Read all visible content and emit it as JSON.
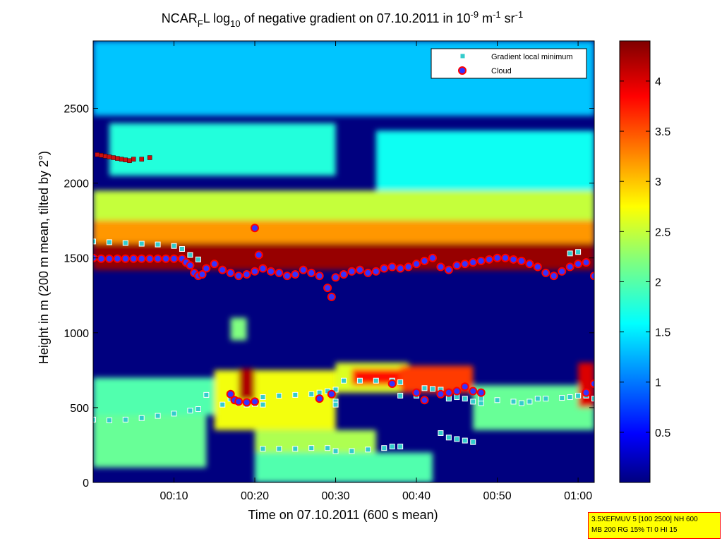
{
  "chart_data": {
    "type": "heatmap",
    "title": "NCAR",
    "title_sub_f": "F",
    "title_mid": "L log",
    "title_sub_10": "10",
    "title_rest": " of negative gradient on 07.10.2011 in 10",
    "title_exp1": "-9",
    "title_unit1": " m",
    "title_exp2": "-1",
    "title_unit2": " sr",
    "title_exp3": "-1",
    "xlabel": "Time on 07.10.2011 (600 s mean)",
    "ylabel": "Height in m (200 m mean, tilted by 2°)",
    "xlim": [
      0,
      62
    ],
    "ylim": [
      0,
      2950
    ],
    "x_ticks": [
      {
        "value": 10,
        "label": "00:10"
      },
      {
        "value": 20,
        "label": "00:20"
      },
      {
        "value": 30,
        "label": "00:30"
      },
      {
        "value": 40,
        "label": "00:40"
      },
      {
        "value": 50,
        "label": "00:50"
      },
      {
        "value": 60,
        "label": "01:00"
      }
    ],
    "y_ticks": [
      {
        "value": 0,
        "label": "0"
      },
      {
        "value": 500,
        "label": "500"
      },
      {
        "value": 1000,
        "label": "1000"
      },
      {
        "value": 1500,
        "label": "1500"
      },
      {
        "value": 2000,
        "label": "2000"
      },
      {
        "value": 2500,
        "label": "2500"
      }
    ],
    "colorbar": {
      "range": [
        0,
        4.4
      ],
      "colormap": "jet",
      "ticks": [
        {
          "value": 0.5,
          "label": "0.5"
        },
        {
          "value": 1,
          "label": "1"
        },
        {
          "value": 1.5,
          "label": "1.5"
        },
        {
          "value": 2,
          "label": "2"
        },
        {
          "value": 2.5,
          "label": "2.5"
        },
        {
          "value": 3,
          "label": "3"
        },
        {
          "value": 3.5,
          "label": "3.5"
        },
        {
          "value": 4,
          "label": "4"
        }
      ]
    },
    "heatmap_regions": [
      {
        "x": [
          0,
          62
        ],
        "y": [
          2450,
          2950
        ],
        "value": 1.4
      },
      {
        "x": [
          2,
          30
        ],
        "y": [
          2050,
          2400
        ],
        "value": 1.8
      },
      {
        "x": [
          35,
          62
        ],
        "y": [
          1950,
          2350
        ],
        "value": 1.7
      },
      {
        "x": [
          0,
          62
        ],
        "y": [
          1750,
          1950
        ],
        "value": 2.5
      },
      {
        "x": [
          0,
          62
        ],
        "y": [
          1600,
          1750
        ],
        "value": 3.2
      },
      {
        "x": [
          0,
          62
        ],
        "y": [
          1420,
          1600
        ],
        "value": 4.3
      },
      {
        "x": [
          0,
          15
        ],
        "y": [
          450,
          700
        ],
        "value": 2.0
      },
      {
        "x": [
          15,
          30
        ],
        "y": [
          350,
          750
        ],
        "value": 2.7
      },
      {
        "x": [
          18,
          20
        ],
        "y": [
          550,
          760
        ],
        "value": 4.2
      },
      {
        "x": [
          30,
          39
        ],
        "y": [
          600,
          800
        ],
        "value": 2.6
      },
      {
        "x": [
          32,
          38
        ],
        "y": [
          650,
          760
        ],
        "value": 3.8
      },
      {
        "x": [
          38,
          47
        ],
        "y": [
          600,
          780
        ],
        "value": 3.6
      },
      {
        "x": [
          47,
          62
        ],
        "y": [
          350,
          650
        ],
        "value": 2.1
      },
      {
        "x": [
          60,
          62
        ],
        "y": [
          500,
          800
        ],
        "value": 4.0
      },
      {
        "x": [
          0,
          14
        ],
        "y": [
          100,
          450
        ],
        "value": 2.1
      },
      {
        "x": [
          20,
          42
        ],
        "y": [
          0,
          200
        ],
        "value": 2.0
      },
      {
        "x": [
          20,
          35
        ],
        "y": [
          200,
          350
        ],
        "value": 2.4
      },
      {
        "x": [
          17,
          19
        ],
        "y": [
          950,
          1100
        ],
        "value": 2.2
      }
    ],
    "series": [
      {
        "name": "Gradient local minimum",
        "marker": "square",
        "points": [
          [
            0,
            1610
          ],
          [
            2,
            1605
          ],
          [
            4,
            1600
          ],
          [
            6,
            1595
          ],
          [
            8,
            1590
          ],
          [
            10,
            1580
          ],
          [
            11,
            1560
          ],
          [
            12,
            1520
          ],
          [
            13,
            1490
          ],
          [
            0,
            420
          ],
          [
            2,
            415
          ],
          [
            4,
            420
          ],
          [
            6,
            430
          ],
          [
            8,
            445
          ],
          [
            10,
            460
          ],
          [
            12,
            480
          ],
          [
            13,
            490
          ],
          [
            14,
            585
          ],
          [
            16,
            520
          ],
          [
            17,
            560
          ],
          [
            18,
            530
          ],
          [
            19,
            520
          ],
          [
            20,
            525
          ],
          [
            21,
            520
          ],
          [
            21,
            570
          ],
          [
            23,
            580
          ],
          [
            25,
            585
          ],
          [
            27,
            590
          ],
          [
            28,
            600
          ],
          [
            29,
            610
          ],
          [
            30,
            620
          ],
          [
            30,
            540
          ],
          [
            30,
            520
          ],
          [
            31,
            680
          ],
          [
            33,
            680
          ],
          [
            35,
            680
          ],
          [
            37,
            680
          ],
          [
            38,
            670
          ],
          [
            21,
            225
          ],
          [
            23,
            225
          ],
          [
            25,
            225
          ],
          [
            27,
            230
          ],
          [
            29,
            230
          ],
          [
            30,
            210
          ],
          [
            32,
            210
          ],
          [
            34,
            220
          ],
          [
            36,
            230
          ],
          [
            37,
            240
          ],
          [
            38,
            240
          ],
          [
            38,
            580
          ],
          [
            40,
            580
          ],
          [
            41,
            630
          ],
          [
            42,
            625
          ],
          [
            43,
            620
          ],
          [
            44,
            560
          ],
          [
            45,
            570
          ],
          [
            46,
            560
          ],
          [
            47,
            540
          ],
          [
            48,
            530
          ],
          [
            43,
            330
          ],
          [
            44,
            300
          ],
          [
            45,
            290
          ],
          [
            46,
            280
          ],
          [
            47,
            270
          ],
          [
            48,
            560
          ],
          [
            50,
            550
          ],
          [
            52,
            540
          ],
          [
            53,
            530
          ],
          [
            54,
            540
          ],
          [
            55,
            560
          ],
          [
            56,
            560
          ],
          [
            58,
            565
          ],
          [
            59,
            570
          ],
          [
            60,
            580
          ],
          [
            61,
            580
          ],
          [
            62,
            560
          ],
          [
            59,
            1530
          ],
          [
            60,
            1540
          ]
        ]
      },
      {
        "name": "Cloud",
        "marker": "circle",
        "points": [
          [
            0,
            1500
          ],
          [
            1,
            1495
          ],
          [
            2,
            1495
          ],
          [
            3,
            1495
          ],
          [
            4,
            1495
          ],
          [
            5,
            1495
          ],
          [
            6,
            1495
          ],
          [
            7,
            1495
          ],
          [
            8,
            1495
          ],
          [
            9,
            1495
          ],
          [
            10,
            1495
          ],
          [
            11,
            1495
          ],
          [
            11.5,
            1470
          ],
          [
            12,
            1450
          ],
          [
            12.5,
            1400
          ],
          [
            13,
            1380
          ],
          [
            13.5,
            1390
          ],
          [
            14,
            1430
          ],
          [
            15,
            1460
          ],
          [
            16,
            1420
          ],
          [
            17,
            1400
          ],
          [
            18,
            1380
          ],
          [
            19,
            1390
          ],
          [
            20,
            1410
          ],
          [
            20,
            1700
          ],
          [
            20.5,
            1520
          ],
          [
            21,
            1430
          ],
          [
            22,
            1410
          ],
          [
            23,
            1400
          ],
          [
            24,
            1380
          ],
          [
            25,
            1390
          ],
          [
            26,
            1420
          ],
          [
            27,
            1400
          ],
          [
            28,
            1380
          ],
          [
            29,
            1300
          ],
          [
            29.5,
            1240
          ],
          [
            30,
            1370
          ],
          [
            31,
            1390
          ],
          [
            32,
            1410
          ],
          [
            33,
            1420
          ],
          [
            34,
            1400
          ],
          [
            35,
            1410
          ],
          [
            36,
            1430
          ],
          [
            37,
            1440
          ],
          [
            38,
            1430
          ],
          [
            39,
            1440
          ],
          [
            40,
            1460
          ],
          [
            41,
            1480
          ],
          [
            42,
            1500
          ],
          [
            43,
            1440
          ],
          [
            44,
            1420
          ],
          [
            45,
            1450
          ],
          [
            46,
            1460
          ],
          [
            47,
            1470
          ],
          [
            48,
            1480
          ],
          [
            49,
            1490
          ],
          [
            50,
            1500
          ],
          [
            51,
            1500
          ],
          [
            52,
            1490
          ],
          [
            53,
            1480
          ],
          [
            54,
            1460
          ],
          [
            55,
            1440
          ],
          [
            56,
            1400
          ],
          [
            57,
            1380
          ],
          [
            58,
            1410
          ],
          [
            59,
            1440
          ],
          [
            60,
            1460
          ],
          [
            61,
            1470
          ],
          [
            62,
            1380
          ],
          [
            17,
            590
          ],
          [
            17.5,
            550
          ],
          [
            18,
            540
          ],
          [
            19,
            535
          ],
          [
            20,
            540
          ],
          [
            28,
            560
          ],
          [
            29.5,
            590
          ],
          [
            37,
            660
          ],
          [
            40,
            600
          ],
          [
            41,
            550
          ],
          [
            43,
            590
          ],
          [
            44,
            600
          ],
          [
            45,
            610
          ],
          [
            46,
            640
          ],
          [
            47,
            610
          ],
          [
            48,
            600
          ],
          [
            61,
            600
          ],
          [
            62,
            660
          ]
        ]
      }
    ],
    "red_markers": [
      [
        0.5,
        2190
      ],
      [
        1,
        2185
      ],
      [
        1.5,
        2180
      ],
      [
        2,
        2175
      ],
      [
        2.5,
        2170
      ],
      [
        3,
        2165
      ],
      [
        3.5,
        2160
      ],
      [
        4,
        2155
      ],
      [
        4.5,
        2150
      ],
      [
        5,
        2160
      ],
      [
        6,
        2160
      ],
      [
        7,
        2170
      ]
    ]
  },
  "infobox": {
    "line1": "3.5XEFMUV 5 [100 2500] NH 600",
    "line2": "MB 200 RG 15% TI 0 HI 15"
  },
  "colors": {
    "low": "#00007f",
    "high": "#7f0000",
    "gradient_marker_fill": "#33cccc",
    "cloud_marker_fill": "#3333ff",
    "cloud_marker_edge": "#ff0000"
  }
}
